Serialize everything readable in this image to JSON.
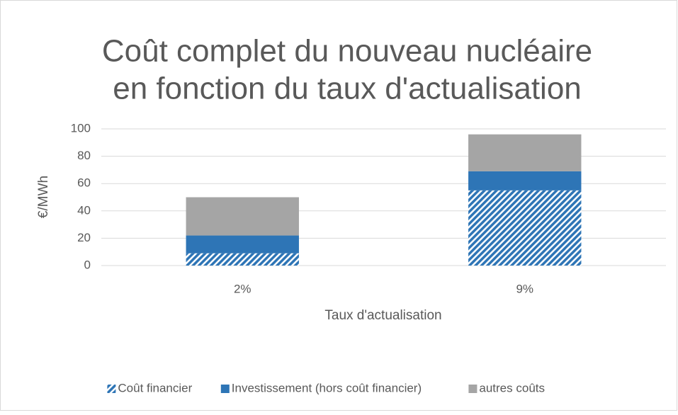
{
  "chart_data": {
    "type": "stacked_bar",
    "title": [
      "Coût complet du nouveau nucléaire",
      "en fonction du taux d'actualisation"
    ],
    "x_label": "Taux d'actualisation",
    "y_label": "€/MWh",
    "categories": [
      "2%",
      "9%"
    ],
    "series": [
      {
        "name": "Coût financier",
        "color": "#2e75b6",
        "pattern": "hatch",
        "values": [
          9,
          55
        ]
      },
      {
        "name": "Investissement (hors coût financier)",
        "color": "#2e75b6",
        "values": [
          13,
          14
        ]
      },
      {
        "name": "autres coûts",
        "color": "#a5a5a5",
        "values": [
          28,
          27
        ]
      }
    ],
    "ylim": [
      0,
      100
    ],
    "yticks": [
      0,
      20,
      40,
      60,
      80,
      100
    ],
    "grid": true,
    "legend": "bottom"
  }
}
